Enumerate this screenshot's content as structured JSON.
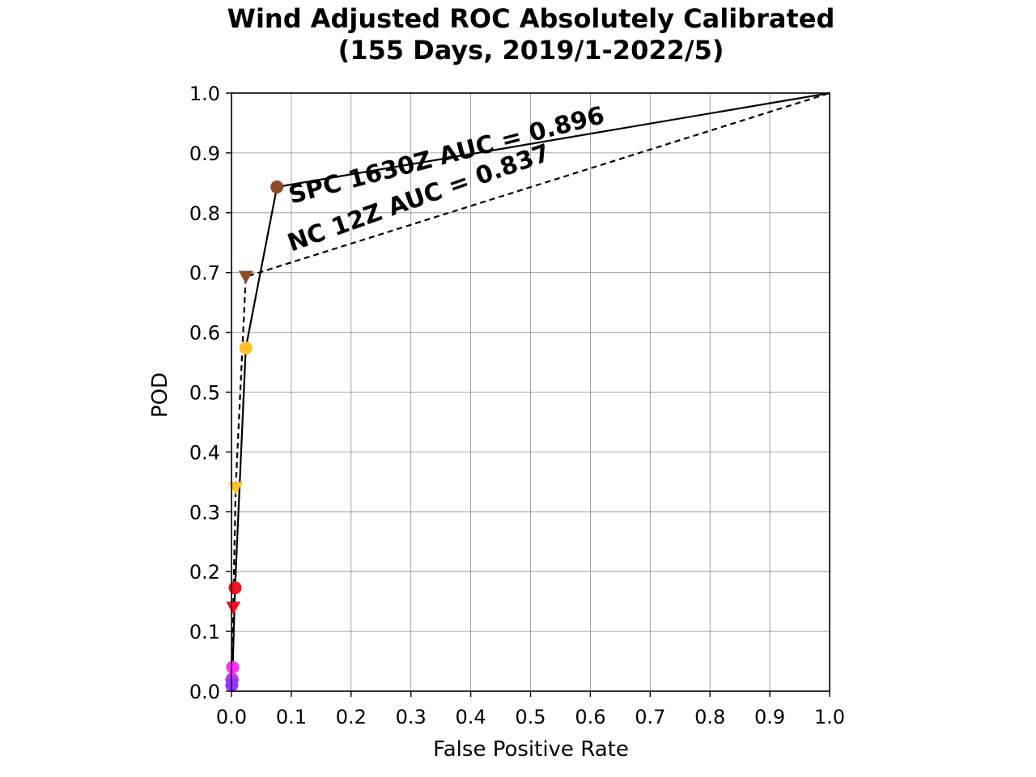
{
  "chart_data": {
    "type": "line",
    "title": [
      "Wind Adjusted ROC Absolutely Calibrated",
      "(155 Days, 2019/1-2022/5)"
    ],
    "xlabel": "False Positive Rate",
    "ylabel": "POD",
    "xlim": [
      0,
      1
    ],
    "ylim": [
      0,
      1
    ],
    "xticks": [
      "0.0",
      "0.1",
      "0.2",
      "0.3",
      "0.4",
      "0.5",
      "0.6",
      "0.7",
      "0.8",
      "0.9",
      "1.0"
    ],
    "yticks": [
      "0.0",
      "0.1",
      "0.2",
      "0.3",
      "0.4",
      "0.5",
      "0.6",
      "0.7",
      "0.8",
      "0.9",
      "1.0"
    ],
    "grid": true,
    "series": [
      {
        "line_style": "solid",
        "marker": "circle",
        "points": [
          {
            "x": 0.0,
            "y": 0.0,
            "color": ""
          },
          {
            "x": 0.0005,
            "y": 0.01,
            "color": "#9b30ff"
          },
          {
            "x": 0.001,
            "y": 0.02,
            "color": "#b23aee"
          },
          {
            "x": 0.002,
            "y": 0.04,
            "color": "#ff2fff"
          },
          {
            "x": 0.006,
            "y": 0.173,
            "color": "#f0141e"
          },
          {
            "x": 0.024,
            "y": 0.574,
            "color": "#ffc125"
          },
          {
            "x": 0.076,
            "y": 0.843,
            "color": "#8b4b2b"
          },
          {
            "x": 1.0,
            "y": 1.0,
            "color": ""
          }
        ]
      },
      {
        "line_style": "dashed",
        "marker": "triangle-down",
        "points": [
          {
            "x": 0.0,
            "y": 0.0,
            "color": ""
          },
          {
            "x": 0.001,
            "y": 0.01,
            "color": "#9b30ff"
          },
          {
            "x": 0.002,
            "y": 0.035,
            "color": "#ff2fff"
          },
          {
            "x": 0.003,
            "y": 0.14,
            "color": "#f0141e"
          },
          {
            "x": 0.007,
            "y": 0.34,
            "color": "#ffc125"
          },
          {
            "x": 0.024,
            "y": 0.693,
            "color": "#8b4b2b"
          },
          {
            "x": 1.0,
            "y": 1.0,
            "color": ""
          }
        ]
      }
    ],
    "annotations": [
      {
        "text": "SPC 1630Z AUC = 0.896",
        "x": 0.1,
        "y": 0.815,
        "angle_deg": -14.5
      },
      {
        "text": "NC 12Z AUC = 0.837",
        "x": 0.1,
        "y": 0.735,
        "angle_deg": -19.5
      }
    ]
  }
}
